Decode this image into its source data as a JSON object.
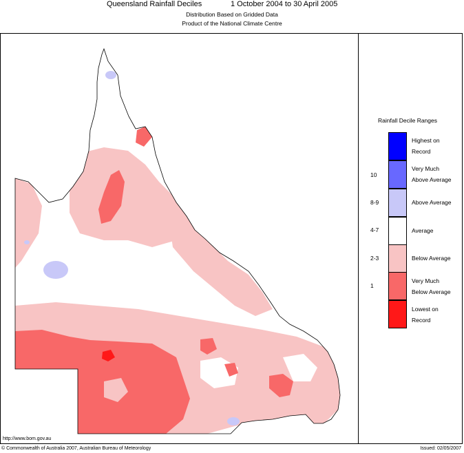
{
  "title": {
    "main": "Queensland Rainfall Deciles",
    "period": "1 October 2004 to 30 April 2005",
    "subtitle1": "Distribution Based on Gridded Data",
    "subtitle2": "Product of the National Climate Centre"
  },
  "legend": {
    "title": "Rainfall Decile Ranges",
    "items": [
      {
        "decile": "",
        "line1": "Highest on",
        "line2": "Record",
        "color": "#0000ff"
      },
      {
        "decile": "10",
        "line1": "Very Much",
        "line2": "Above Average",
        "color": "#6868ff"
      },
      {
        "decile": "8-9",
        "line1": "Above Average",
        "line2": "",
        "color": "#c8c8f8"
      },
      {
        "decile": "4-7",
        "line1": "Average",
        "line2": "",
        "color": "#ffffff"
      },
      {
        "decile": "2-3",
        "line1": "Below Average",
        "line2": "",
        "color": "#f8c4c4"
      },
      {
        "decile": "1",
        "line1": "Very Much",
        "line2": "Below Average",
        "color": "#f86868"
      },
      {
        "decile": "",
        "line1": "Lowest on",
        "line2": "Record",
        "color": "#ff1818"
      }
    ]
  },
  "footer": {
    "url": "http://www.bom.gov.au",
    "copyright": "© Commonwealth of Australia 2007, Australian Bureau of Meteorology",
    "issued": "Issued: 02/05/2007"
  }
}
